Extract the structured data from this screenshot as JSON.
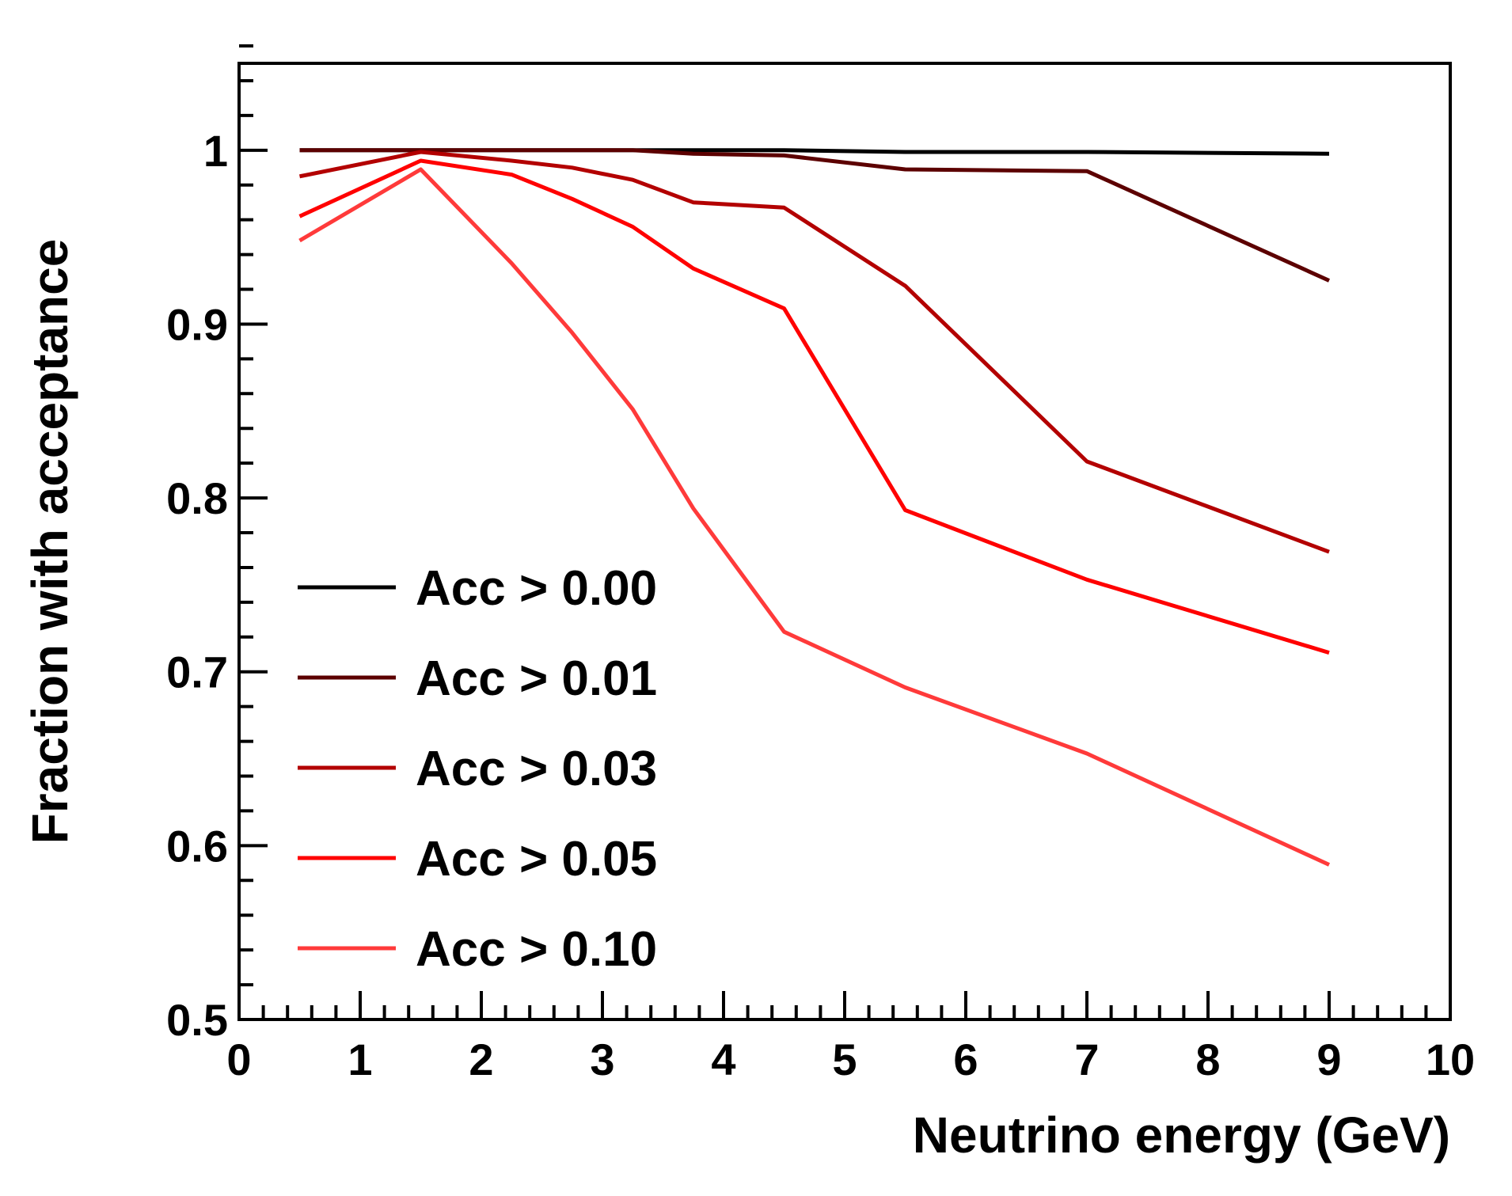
{
  "chart_data": {
    "type": "line",
    "xlabel": "Neutrino energy (GeV)",
    "ylabel": "Fraction with acceptance",
    "xlim": [
      0,
      10
    ],
    "ylim": [
      0.5,
      1.05
    ],
    "x_ticks": [
      0,
      1,
      2,
      3,
      4,
      5,
      6,
      7,
      8,
      9,
      10
    ],
    "x_tick_labels": [
      "0",
      "1",
      "2",
      "3",
      "4",
      "5",
      "6",
      "7",
      "8",
      "9",
      "10"
    ],
    "y_ticks": [
      0.5,
      0.6,
      0.7,
      0.8,
      0.9,
      1.0
    ],
    "y_tick_labels": [
      "0.5",
      "0.6",
      "0.7",
      "0.8",
      "0.9",
      "1"
    ],
    "grid": false,
    "legend_position": "lower-left",
    "series": [
      {
        "name": "Acc > 0.00",
        "color": "#000000",
        "x": [
          0.5,
          1.5,
          2.25,
          2.75,
          3.25,
          3.75,
          4.5,
          5.5,
          7.0,
          9.0
        ],
        "y": [
          1.0,
          1.0,
          1.0,
          1.0,
          1.0,
          1.0,
          1.0,
          0.999,
          0.999,
          0.998
        ]
      },
      {
        "name": "Acc > 0.01",
        "color": "#5c0000",
        "x": [
          0.5,
          1.5,
          2.25,
          2.75,
          3.25,
          3.75,
          4.5,
          5.5,
          7.0,
          9.0
        ],
        "y": [
          1.0,
          1.0,
          1.0,
          1.0,
          1.0,
          0.998,
          0.997,
          0.989,
          0.988,
          0.925
        ]
      },
      {
        "name": "Acc > 0.03",
        "color": "#b30000",
        "x": [
          0.5,
          1.5,
          2.25,
          2.75,
          3.25,
          3.75,
          4.5,
          5.5,
          7.0,
          9.0
        ],
        "y": [
          0.985,
          0.999,
          0.994,
          0.99,
          0.983,
          0.97,
          0.967,
          0.922,
          0.821,
          0.769
        ]
      },
      {
        "name": "Acc > 0.05",
        "color": "#ff0000",
        "x": [
          0.5,
          1.5,
          2.25,
          2.75,
          3.25,
          3.75,
          4.5,
          5.5,
          7.0,
          9.0
        ],
        "y": [
          0.962,
          0.994,
          0.986,
          0.972,
          0.956,
          0.932,
          0.909,
          0.793,
          0.753,
          0.711
        ]
      },
      {
        "name": "Acc > 0.10",
        "color": "#ff3a3a",
        "x": [
          0.5,
          1.5,
          2.25,
          2.75,
          3.25,
          3.75,
          4.5,
          5.5,
          7.0,
          9.0
        ],
        "y": [
          0.948,
          0.989,
          0.935,
          0.895,
          0.851,
          0.794,
          0.723,
          0.691,
          0.653,
          0.589
        ]
      }
    ]
  }
}
